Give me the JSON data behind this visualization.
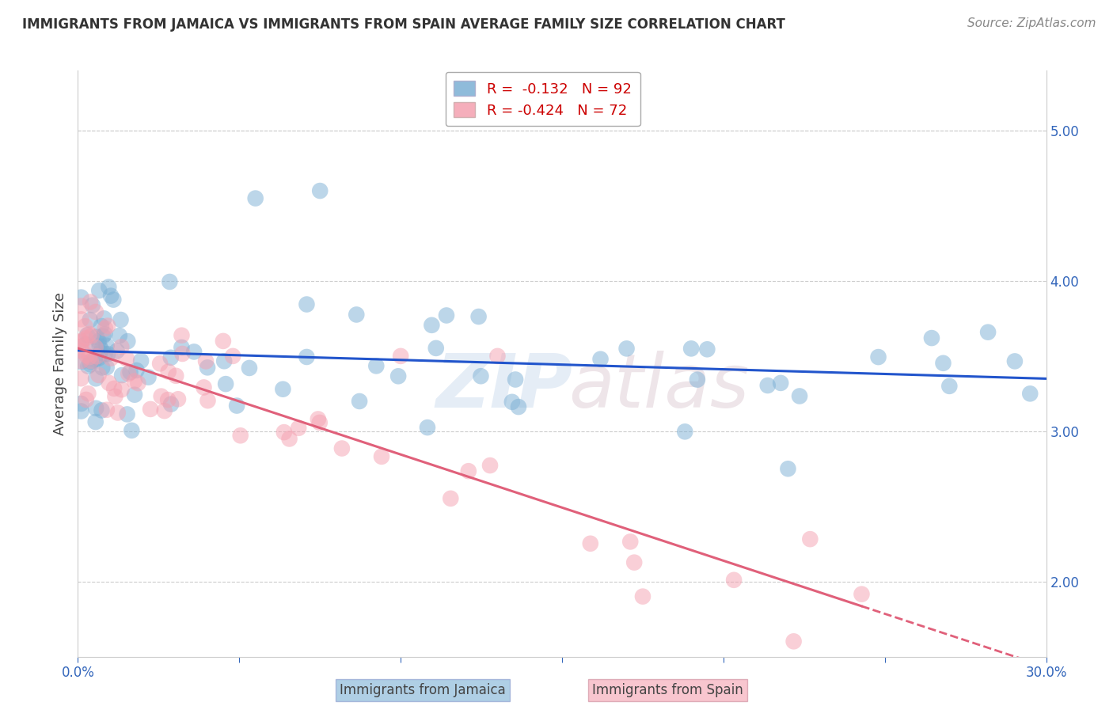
{
  "title": "IMMIGRANTS FROM JAMAICA VS IMMIGRANTS FROM SPAIN AVERAGE FAMILY SIZE CORRELATION CHART",
  "source": "Source: ZipAtlas.com",
  "ylabel": "Average Family Size",
  "xlim": [
    0.0,
    0.3
  ],
  "ylim": [
    1.5,
    5.4
  ],
  "yticks": [
    2.0,
    3.0,
    4.0,
    5.0
  ],
  "background_color": "#ffffff",
  "grid_color": "#cccccc",
  "jamaica_color": "#7bafd4",
  "spain_color": "#f4a0b0",
  "jamaica_line_color": "#2255cc",
  "spain_line_color": "#e0607a",
  "legend_jamaica_R": "-0.132",
  "legend_jamaica_N": "92",
  "legend_spain_R": "-0.424",
  "legend_spain_N": "72",
  "watermark_zip_color": "#d0dff0",
  "watermark_atlas_color": "#e0d0d8"
}
